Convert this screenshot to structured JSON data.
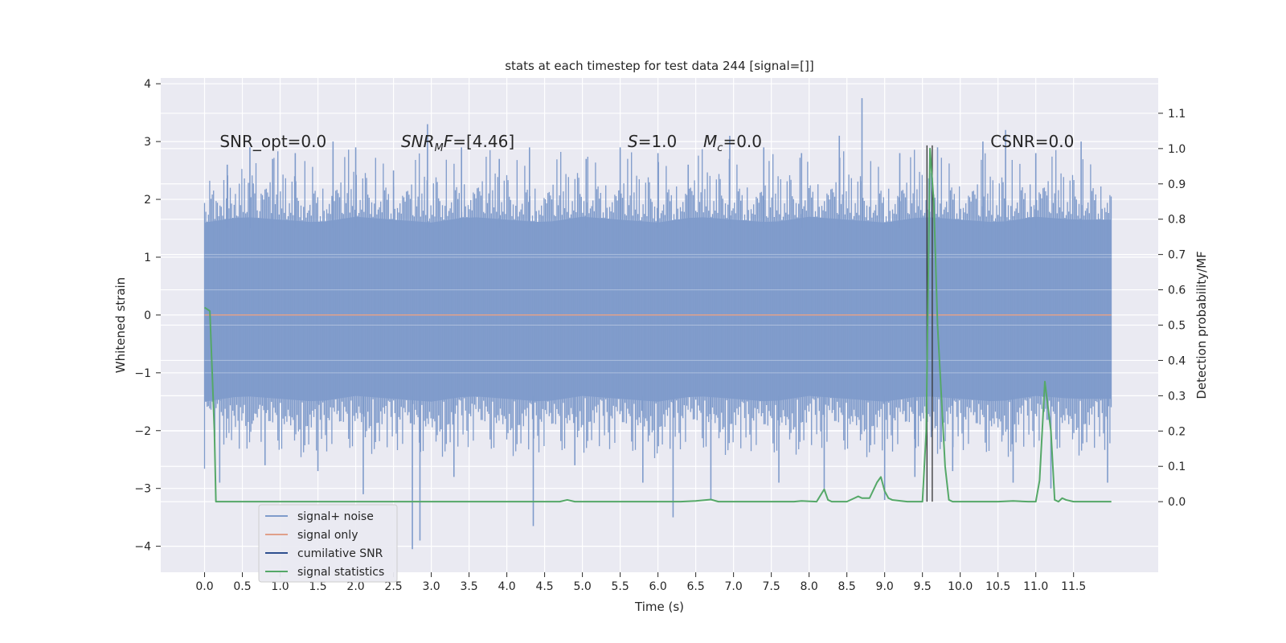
{
  "chart_data": {
    "type": "line",
    "title": "stats at each timestep for test data 244 [signal=[]]",
    "xlabel": "Time (s)",
    "ylabel_left": "Whitened strain",
    "ylabel_right": "Detection probability/MF",
    "xlim": [
      -0.58,
      12.62
    ],
    "ylim_left": [
      -4.45,
      4.1
    ],
    "ylim_right": [
      -0.2,
      1.2
    ],
    "x_ticks": [
      "0.0",
      "0.5",
      "1.0",
      "1.5",
      "2.0",
      "2.5",
      "3.0",
      "3.5",
      "4.0",
      "4.5",
      "5.0",
      "5.5",
      "6.0",
      "6.5",
      "7.0",
      "7.5",
      "8.0",
      "8.5",
      "9.0",
      "9.5",
      "10.0",
      "10.5",
      "11.0",
      "11.5"
    ],
    "y_ticks_left": [
      4,
      3,
      2,
      1,
      0,
      -1,
      -2,
      -3,
      -4
    ],
    "y_ticks_left_labels": [
      "4",
      "3",
      "2",
      "1",
      "0",
      "−1",
      "−2",
      "−3",
      "−4"
    ],
    "y_ticks_right": [
      1.1,
      1.0,
      0.9,
      0.8,
      0.7,
      0.6,
      0.5,
      0.4,
      0.3,
      0.2,
      0.1,
      0.0
    ],
    "y_ticks_right_labels": [
      "1.1",
      "1.0",
      "0.9",
      "0.8",
      "0.7",
      "0.6",
      "0.5",
      "0.4",
      "0.3",
      "0.2",
      "0.1",
      "0.0"
    ],
    "grid": true,
    "legend_position": "lower-left",
    "annotations": [
      {
        "parts": [
          {
            "text": "SNR_opt=0.0",
            "italic": false
          }
        ],
        "x": 0.2,
        "y": 3.0
      },
      {
        "parts": [
          {
            "text": "SNR",
            "italic": true
          },
          {
            "text": "M",
            "italic": true,
            "sub": true
          },
          {
            "text": "F",
            "italic": true
          },
          {
            "text": "=[4.46]",
            "italic": false
          }
        ],
        "x": 2.6,
        "y": 3.0
      },
      {
        "parts": [
          {
            "text": "S",
            "italic": true
          },
          {
            "text": "=1.0",
            "italic": false
          }
        ],
        "x": 5.6,
        "y": 3.0
      },
      {
        "parts": [
          {
            "text": "M",
            "italic": true
          },
          {
            "text": "c",
            "italic": true,
            "sub": true
          },
          {
            "text": "=0.0",
            "italic": false
          }
        ],
        "x": 6.6,
        "y": 3.0
      },
      {
        "parts": [
          {
            "text": "CSNR=0.0",
            "italic": false
          }
        ],
        "x": 10.4,
        "y": 3.0
      }
    ],
    "series": [
      {
        "name": "signal+ noise",
        "axis": "left",
        "color": "#7f9bcb",
        "x_range": [
          0.0,
          12.0
        ],
        "band_low": [
          -1.5,
          -1.4,
          -1.45,
          -1.5,
          -1.4,
          -1.45,
          -1.5,
          -1.4,
          -1.45,
          -1.5,
          -1.4,
          -1.45,
          -1.5,
          -1.4,
          -1.45,
          -1.5,
          -1.4,
          -1.45,
          -1.5,
          -1.4,
          -1.45,
          -1.5,
          -1.4,
          -1.45,
          -1.45
        ],
        "band_high": [
          1.6,
          1.7,
          1.65,
          1.6,
          1.7,
          1.65,
          1.6,
          1.7,
          1.65,
          1.6,
          1.7,
          1.65,
          1.6,
          1.7,
          1.65,
          1.6,
          1.7,
          1.65,
          1.6,
          1.7,
          1.65,
          1.6,
          1.7,
          1.65,
          1.65
        ],
        "peaks": [
          {
            "x": 0.3,
            "y": 2.6
          },
          {
            "x": 0.6,
            "y": 2.9
          },
          {
            "x": 0.9,
            "y": 2.7
          },
          {
            "x": 1.2,
            "y": 2.8
          },
          {
            "x": 1.7,
            "y": 3.0
          },
          {
            "x": 2.0,
            "y": 2.9
          },
          {
            "x": 2.5,
            "y": 2.5
          },
          {
            "x": 2.95,
            "y": 3.3
          },
          {
            "x": 3.4,
            "y": 2.9
          },
          {
            "x": 3.9,
            "y": 2.7
          },
          {
            "x": 4.3,
            "y": 2.9
          },
          {
            "x": 5.05,
            "y": 2.7
          },
          {
            "x": 5.5,
            "y": 2.9
          },
          {
            "x": 6.0,
            "y": 2.8
          },
          {
            "x": 6.4,
            "y": 2.6
          },
          {
            "x": 6.95,
            "y": 3.1
          },
          {
            "x": 7.4,
            "y": 2.9
          },
          {
            "x": 7.9,
            "y": 2.8
          },
          {
            "x": 8.4,
            "y": 3.1
          },
          {
            "x": 8.7,
            "y": 3.75
          },
          {
            "x": 9.2,
            "y": 2.8
          },
          {
            "x": 9.7,
            "y": 2.9
          },
          {
            "x": 10.3,
            "y": 3.0
          },
          {
            "x": 10.6,
            "y": 3.2
          },
          {
            "x": 11.0,
            "y": 2.8
          },
          {
            "x": 11.6,
            "y": 3.0
          }
        ],
        "troughs": [
          {
            "x": 0.2,
            "y": -2.9
          },
          {
            "x": 0.8,
            "y": -2.6
          },
          {
            "x": 1.5,
            "y": -2.7
          },
          {
            "x": 2.1,
            "y": -3.1
          },
          {
            "x": 2.75,
            "y": -4.05
          },
          {
            "x": 2.85,
            "y": -3.9
          },
          {
            "x": 3.3,
            "y": -2.8
          },
          {
            "x": 4.35,
            "y": -3.65
          },
          {
            "x": 4.9,
            "y": -2.6
          },
          {
            "x": 5.8,
            "y": -2.9
          },
          {
            "x": 6.2,
            "y": -3.5
          },
          {
            "x": 6.7,
            "y": -3.2
          },
          {
            "x": 7.6,
            "y": -2.9
          },
          {
            "x": 8.2,
            "y": -3.0
          },
          {
            "x": 9.0,
            "y": -3.2
          },
          {
            "x": 9.4,
            "y": -2.8
          },
          {
            "x": 9.9,
            "y": -2.7
          },
          {
            "x": 10.7,
            "y": -2.9
          },
          {
            "x": 11.2,
            "y": -3.0
          },
          {
            "x": 11.95,
            "y": -2.9
          }
        ]
      },
      {
        "name": "signal only",
        "axis": "left",
        "color": "#e0a08a",
        "x": [
          0.0,
          12.0
        ],
        "y": [
          0.0,
          0.0
        ]
      },
      {
        "name": "cumilative SNR",
        "axis": "right",
        "color": "#2e4f8f",
        "x": [],
        "y": []
      },
      {
        "name": "signal statistics",
        "axis": "right",
        "color": "#55a868",
        "x": [
          0.0,
          0.07,
          0.13,
          0.15,
          0.5,
          1.0,
          2.0,
          3.0,
          4.0,
          4.7,
          4.8,
          4.9,
          5.5,
          6.0,
          6.3,
          6.5,
          6.7,
          6.8,
          7.5,
          7.8,
          7.9,
          8.1,
          8.2,
          8.25,
          8.3,
          8.5,
          8.6,
          8.65,
          8.7,
          8.8,
          8.9,
          8.95,
          9.0,
          9.05,
          9.1,
          9.3,
          9.5,
          9.55,
          9.6,
          9.65,
          9.7,
          9.8,
          9.85,
          9.9,
          10.0,
          10.5,
          10.7,
          10.9,
          11.0,
          11.05,
          11.12,
          11.2,
          11.25,
          11.3,
          11.35,
          11.4,
          11.5,
          11.6,
          12.0
        ],
        "y": [
          0.55,
          0.54,
          0.2,
          0.0,
          0.0,
          0.0,
          0.0,
          0.0,
          0.0,
          0.0,
          0.005,
          0.0,
          0.0,
          0.0,
          0.0,
          0.002,
          0.006,
          0.0,
          0.0,
          0.0,
          0.002,
          0.0,
          0.035,
          0.005,
          0.0,
          0.0,
          0.01,
          0.015,
          0.01,
          0.01,
          0.055,
          0.07,
          0.03,
          0.01,
          0.005,
          0.0,
          0.0,
          0.2,
          1.0,
          0.85,
          0.5,
          0.1,
          0.005,
          0.0,
          0.0,
          0.0,
          0.002,
          0.0,
          0.0,
          0.06,
          0.34,
          0.2,
          0.005,
          0.0,
          0.01,
          0.005,
          0.0,
          0.0,
          0.0
        ]
      }
    ],
    "vlines": [
      {
        "x": 9.56,
        "y_top": 1.0,
        "color": "#333333"
      },
      {
        "x": 9.63,
        "y_top": 1.0,
        "color": "#333333"
      }
    ]
  }
}
